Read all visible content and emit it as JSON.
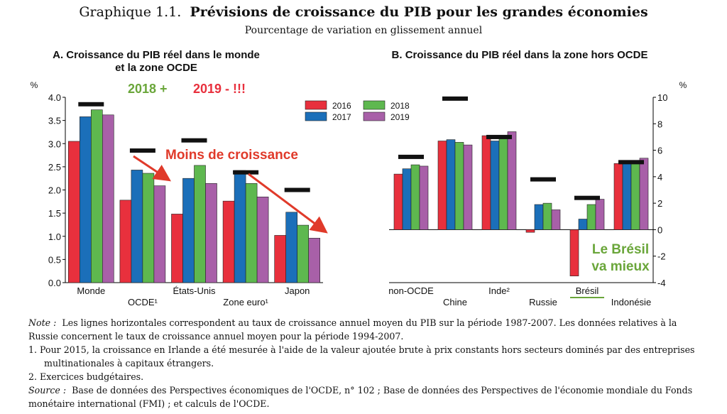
{
  "title": {
    "prefix": "Graphique 1.1.",
    "main": "Prévisions de croissance du PIB pour les grandes économies"
  },
  "subtitle": "Pourcentage de variation en glissement annuel",
  "colors": {
    "2016": "#e8303d",
    "2017": "#1b6fb9",
    "2018": "#5eb84f",
    "2019": "#a860a8",
    "avg": "#111111",
    "annot_red": "#e03a2a",
    "annot_green": "#6aa63a"
  },
  "legend": [
    "2016",
    "2017",
    "2018",
    "2019"
  ],
  "annotations": {
    "panel_a_2018": "2018 +",
    "panel_a_2019": "2019 - !!!",
    "panel_a_moins": "Moins de croissance",
    "panel_b_bresil": [
      "Le Brésil",
      "va mieux"
    ]
  },
  "chart_data": [
    {
      "type": "bar",
      "title": "A. Croissance du PIB réel dans le monde et la zone OCDE",
      "ylabel": "%",
      "ylim": [
        0,
        4
      ],
      "yticks": [
        "0.0",
        "0.5",
        "1.0",
        "1.5",
        "2.0",
        "2.5",
        "3.0",
        "3.5",
        "4.0"
      ],
      "categories": [
        "Monde",
        "OCDE¹",
        "États-Unis",
        "Zone euro¹",
        "Japon"
      ],
      "series": [
        {
          "name": "2016",
          "values": [
            3.05,
            1.78,
            1.48,
            1.76,
            1.02
          ]
        },
        {
          "name": "2017",
          "values": [
            3.58,
            2.43,
            2.25,
            2.42,
            1.52
          ]
        },
        {
          "name": "2018",
          "values": [
            3.73,
            2.36,
            2.53,
            2.14,
            1.24
          ]
        },
        {
          "name": "2019",
          "values": [
            3.62,
            2.09,
            2.14,
            1.85,
            0.96
          ]
        }
      ],
      "average_1987_2007": [
        3.85,
        2.85,
        3.07,
        2.38,
        2.0
      ]
    },
    {
      "type": "bar",
      "title": "B. Croissance du PIB réel dans la zone hors OCDE",
      "ylabel": "%",
      "ylim": [
        -4,
        10
      ],
      "yticks": [
        "-4",
        "-2",
        "0",
        "2",
        "4",
        "6",
        "8",
        "10"
      ],
      "categories": [
        "non-OCDE",
        "Chine",
        "Inde²",
        "Russie",
        "Brésil",
        "Indonésie"
      ],
      "series": [
        {
          "name": "2016",
          "values": [
            4.2,
            6.7,
            7.1,
            -0.2,
            -3.5,
            5.0
          ]
        },
        {
          "name": "2017",
          "values": [
            4.6,
            6.8,
            6.7,
            1.9,
            0.8,
            5.1
          ]
        },
        {
          "name": "2018",
          "values": [
            4.9,
            6.6,
            7.0,
            2.0,
            1.9,
            5.2
          ]
        },
        {
          "name": "2019",
          "values": [
            4.8,
            6.4,
            7.4,
            1.5,
            2.3,
            5.4
          ]
        }
      ],
      "average_1987_2007": [
        5.5,
        9.9,
        7.0,
        3.8,
        2.4,
        5.1
      ]
    }
  ],
  "notes": {
    "note_label": "Note :",
    "note_text": "Les lignes horizontales correspondent au taux de croissance annuel moyen du PIB sur la période 1987-2007. Les données relatives à la Russie concernent le taux de croissance annuel moyen pour la période 1994-2007.",
    "fn1": "1.  Pour 2015, la croissance en Irlande a été mesurée à l'aide de la valeur ajoutée brute à prix constants hors secteurs dominés par des entreprises multinationales à capitaux étrangers.",
    "fn2": "2.  Exercices budgétaires.",
    "source_label": "Source :",
    "source_text": "Base de données des Perspectives économiques de l'OCDE, n° 102 ; Base de données des Perspectives de l'économie mondiale du Fonds monétaire international (FMI) ; et calculs de l'OCDE."
  }
}
